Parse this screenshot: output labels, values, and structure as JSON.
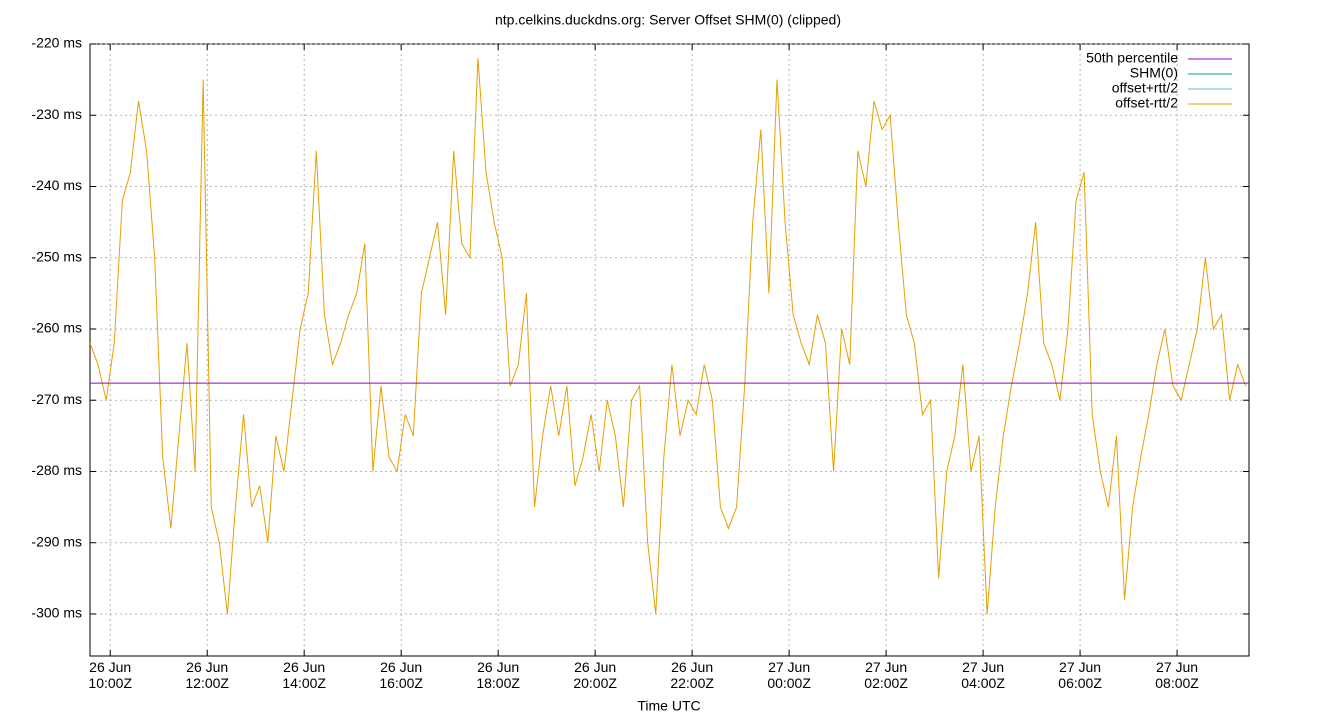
{
  "chart_data": {
    "type": "line",
    "title": "ntp.celkins.duckdns.org: Server Offset SHM(0) (clipped)",
    "x_label": "Time UTC",
    "xlim": [
      "26 Jun 09:35Z",
      "27 Jun 09:29Z"
    ],
    "xticks": [
      "26 Jun 10:00Z",
      "26 Jun 12:00Z",
      "26 Jun 14:00Z",
      "26 Jun 16:00Z",
      "26 Jun 18:00Z",
      "26 Jun 20:00Z",
      "26 Jun 22:00Z",
      "27 Jun 00:00Z",
      "27 Jun 02:00Z",
      "27 Jun 04:00Z",
      "27 Jun 06:00Z",
      "27 Jun 08:00Z"
    ],
    "ylim": [
      -305.9,
      -220
    ],
    "yticks": [
      {
        "value": -220,
        "label": "-220 ms"
      },
      {
        "value": -230,
        "label": "-230 ms"
      },
      {
        "value": -240,
        "label": "-240 ms"
      },
      {
        "value": -250,
        "label": "-250 ms"
      },
      {
        "value": -260,
        "label": "-260 ms"
      },
      {
        "value": -270,
        "label": "-270 ms"
      },
      {
        "value": -280,
        "label": "-280 ms"
      },
      {
        "value": -290,
        "label": "-290 ms"
      },
      {
        "value": -300,
        "label": "-300 ms"
      }
    ],
    "grid": true,
    "legend": "top-right",
    "x": [
      "26 Jun 09:35Z",
      "26 Jun 09:45Z",
      "26 Jun 09:55Z",
      "26 Jun 10:05Z",
      "26 Jun 10:15Z",
      "26 Jun 10:25Z",
      "26 Jun 10:35Z",
      "26 Jun 10:45Z",
      "26 Jun 10:55Z",
      "26 Jun 11:05Z",
      "26 Jun 11:15Z",
      "26 Jun 11:25Z",
      "26 Jun 11:35Z",
      "26 Jun 11:45Z",
      "26 Jun 11:55Z",
      "26 Jun 12:05Z",
      "26 Jun 12:15Z",
      "26 Jun 12:25Z",
      "26 Jun 12:35Z",
      "26 Jun 12:45Z",
      "26 Jun 12:55Z",
      "26 Jun 13:05Z",
      "26 Jun 13:15Z",
      "26 Jun 13:25Z",
      "26 Jun 13:35Z",
      "26 Jun 13:45Z",
      "26 Jun 13:55Z",
      "26 Jun 14:05Z",
      "26 Jun 14:15Z",
      "26 Jun 14:25Z",
      "26 Jun 14:35Z",
      "26 Jun 14:45Z",
      "26 Jun 14:55Z",
      "26 Jun 15:05Z",
      "26 Jun 15:15Z",
      "26 Jun 15:25Z",
      "26 Jun 15:35Z",
      "26 Jun 15:45Z",
      "26 Jun 15:55Z",
      "26 Jun 16:05Z",
      "26 Jun 16:15Z",
      "26 Jun 16:25Z",
      "26 Jun 16:35Z",
      "26 Jun 16:45Z",
      "26 Jun 16:55Z",
      "26 Jun 17:05Z",
      "26 Jun 17:15Z",
      "26 Jun 17:25Z",
      "26 Jun 17:35Z",
      "26 Jun 17:45Z",
      "26 Jun 17:55Z",
      "26 Jun 18:05Z",
      "26 Jun 18:15Z",
      "26 Jun 18:25Z",
      "26 Jun 18:35Z",
      "26 Jun 18:45Z",
      "26 Jun 18:55Z",
      "26 Jun 19:05Z",
      "26 Jun 19:15Z",
      "26 Jun 19:25Z",
      "26 Jun 19:35Z",
      "26 Jun 19:45Z",
      "26 Jun 19:55Z",
      "26 Jun 20:05Z",
      "26 Jun 20:15Z",
      "26 Jun 20:25Z",
      "26 Jun 20:35Z",
      "26 Jun 20:45Z",
      "26 Jun 20:55Z",
      "26 Jun 21:05Z",
      "26 Jun 21:15Z",
      "26 Jun 21:25Z",
      "26 Jun 21:35Z",
      "26 Jun 21:45Z",
      "26 Jun 21:55Z",
      "26 Jun 22:05Z",
      "26 Jun 22:15Z",
      "26 Jun 22:25Z",
      "26 Jun 22:35Z",
      "26 Jun 22:45Z",
      "26 Jun 22:55Z",
      "26 Jun 23:05Z",
      "26 Jun 23:15Z",
      "26 Jun 23:25Z",
      "26 Jun 23:35Z",
      "26 Jun 23:45Z",
      "26 Jun 23:55Z",
      "27 Jun 00:05Z",
      "27 Jun 00:15Z",
      "27 Jun 00:25Z",
      "27 Jun 00:35Z",
      "27 Jun 00:45Z",
      "27 Jun 00:55Z",
      "27 Jun 01:05Z",
      "27 Jun 01:15Z",
      "27 Jun 01:25Z",
      "27 Jun 01:35Z",
      "27 Jun 01:45Z",
      "27 Jun 01:55Z",
      "27 Jun 02:05Z",
      "27 Jun 02:15Z",
      "27 Jun 02:25Z",
      "27 Jun 02:35Z",
      "27 Jun 02:45Z",
      "27 Jun 02:55Z",
      "27 Jun 03:05Z",
      "27 Jun 03:15Z",
      "27 Jun 03:25Z",
      "27 Jun 03:35Z",
      "27 Jun 03:45Z",
      "27 Jun 03:55Z",
      "27 Jun 04:05Z",
      "27 Jun 04:15Z",
      "27 Jun 04:25Z",
      "27 Jun 04:35Z",
      "27 Jun 04:45Z",
      "27 Jun 04:55Z",
      "27 Jun 05:05Z",
      "27 Jun 05:15Z",
      "27 Jun 05:25Z",
      "27 Jun 05:35Z",
      "27 Jun 05:45Z",
      "27 Jun 05:55Z",
      "27 Jun 06:05Z",
      "27 Jun 06:15Z",
      "27 Jun 06:25Z",
      "27 Jun 06:35Z",
      "27 Jun 06:45Z",
      "27 Jun 06:55Z",
      "27 Jun 07:05Z",
      "27 Jun 07:15Z",
      "27 Jun 07:25Z",
      "27 Jun 07:35Z",
      "27 Jun 07:45Z",
      "27 Jun 07:55Z",
      "27 Jun 08:05Z",
      "27 Jun 08:15Z",
      "27 Jun 08:25Z",
      "27 Jun 08:35Z",
      "27 Jun 08:45Z",
      "27 Jun 08:55Z",
      "27 Jun 09:05Z",
      "27 Jun 09:15Z",
      "27 Jun 09:25Z"
    ],
    "series": [
      {
        "name": "50th percentile",
        "color": "#9400d3",
        "x": [
          "26 Jun 09:35Z",
          "27 Jun 09:29Z"
        ],
        "values": [
          -267.6,
          -267.6
        ]
      },
      {
        "name": "SHM(0)",
        "color": "#009e9e",
        "x": [],
        "values": []
      },
      {
        "name": "offset+rtt/2",
        "color": "#56b4e9",
        "x": [],
        "values": []
      },
      {
        "name": "offset-rtt/2",
        "color": "#e69f00",
        "values": [
          -262,
          -265,
          -270,
          -262,
          -242,
          -238,
          -228,
          -235,
          -250,
          -278,
          -288,
          -275,
          -262,
          -280,
          -225,
          -285,
          -290,
          -300,
          -285,
          -272,
          -285,
          -282,
          -290,
          -275,
          -280,
          -270,
          -260,
          -255,
          -235,
          -258,
          -265,
          -262,
          -258,
          -255,
          -248,
          -280,
          -268,
          -278,
          -280,
          -272,
          -275,
          -255,
          -250,
          -245,
          -258,
          -235,
          -248,
          -250,
          -222,
          -238,
          -245,
          -250,
          -268,
          -265,
          -255,
          -285,
          -275,
          -268,
          -275,
          -268,
          -282,
          -278,
          -272,
          -280,
          -270,
          -275,
          -285,
          -270,
          -268,
          -290,
          -300,
          -278,
          -265,
          -275,
          -270,
          -272,
          -265,
          -270,
          -285,
          -288,
          -285,
          -268,
          -245,
          -232,
          -255,
          -225,
          -245,
          -258,
          -262,
          -265,
          -258,
          -262,
          -280,
          -260,
          -265,
          -235,
          -240,
          -228,
          -232,
          -230,
          -245,
          -258,
          -262,
          -272,
          -270,
          -295,
          -280,
          -275,
          -265,
          -280,
          -275,
          -300,
          -285,
          -275,
          -268,
          -262,
          -255,
          -245,
          -262,
          -265,
          -270,
          -260,
          -242,
          -238,
          -272,
          -280,
          -285,
          -275,
          -298,
          -285,
          -278,
          -272,
          -265,
          -260,
          -268,
          -270,
          -265,
          -260,
          -250,
          -260,
          -258,
          -270,
          -265,
          -268
        ]
      }
    ]
  }
}
